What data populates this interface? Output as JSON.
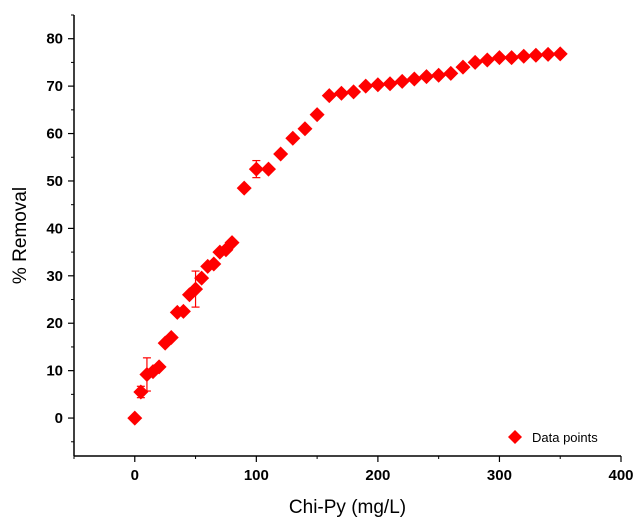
{
  "chart_data": {
    "type": "scatter",
    "title": "",
    "xlabel": "Chi-Py (mg/L)",
    "ylabel": "% Removal",
    "xlim": [
      -50,
      400
    ],
    "ylim": [
      -8,
      85
    ],
    "xticks": [
      0,
      100,
      200,
      300,
      400
    ],
    "xtick_labels": [
      "0",
      "100",
      "200",
      "300",
      "400"
    ],
    "yticks": [
      0,
      10,
      20,
      30,
      40,
      50,
      60,
      70,
      80
    ],
    "ytick_labels": [
      "0",
      "10",
      "20",
      "30",
      "40",
      "50",
      "60",
      "70",
      "80"
    ],
    "grid": false,
    "legend_position": "bottom-right",
    "marker_color": "#ff0000",
    "series": [
      {
        "name": "Data points",
        "marker": "diamond",
        "color": "#ff0000",
        "points": [
          {
            "x": 0,
            "y": 0
          },
          {
            "x": 5,
            "y": 5.5,
            "err": 1.2
          },
          {
            "x": 10,
            "y": 9.2,
            "err": 3.5
          },
          {
            "x": 15,
            "y": 9.8
          },
          {
            "x": 20,
            "y": 10.8
          },
          {
            "x": 25,
            "y": 15.8
          },
          {
            "x": 30,
            "y": 17
          },
          {
            "x": 35,
            "y": 22.3
          },
          {
            "x": 40,
            "y": 22.5
          },
          {
            "x": 45,
            "y": 26
          },
          {
            "x": 50,
            "y": 27.2,
            "err": 3.8
          },
          {
            "x": 55,
            "y": 29.5
          },
          {
            "x": 60,
            "y": 32
          },
          {
            "x": 65,
            "y": 32.5
          },
          {
            "x": 70,
            "y": 35
          },
          {
            "x": 75,
            "y": 35.5
          },
          {
            "x": 80,
            "y": 37
          },
          {
            "x": 90,
            "y": 48.5
          },
          {
            "x": 100,
            "y": 52.5,
            "err": 1.8
          },
          {
            "x": 110,
            "y": 52.5
          },
          {
            "x": 120,
            "y": 55.7
          },
          {
            "x": 130,
            "y": 59
          },
          {
            "x": 140,
            "y": 61
          },
          {
            "x": 150,
            "y": 64
          },
          {
            "x": 160,
            "y": 68
          },
          {
            "x": 170,
            "y": 68.5
          },
          {
            "x": 180,
            "y": 68.8
          },
          {
            "x": 190,
            "y": 70
          },
          {
            "x": 200,
            "y": 70.3
          },
          {
            "x": 210,
            "y": 70.5
          },
          {
            "x": 220,
            "y": 71
          },
          {
            "x": 230,
            "y": 71.5
          },
          {
            "x": 240,
            "y": 72
          },
          {
            "x": 250,
            "y": 72.3
          },
          {
            "x": 260,
            "y": 72.7
          },
          {
            "x": 270,
            "y": 74
          },
          {
            "x": 280,
            "y": 75
          },
          {
            "x": 290,
            "y": 75.5
          },
          {
            "x": 300,
            "y": 76
          },
          {
            "x": 310,
            "y": 76
          },
          {
            "x": 320,
            "y": 76.3
          },
          {
            "x": 330,
            "y": 76.5
          },
          {
            "x": 340,
            "y": 76.7
          },
          {
            "x": 350,
            "y": 76.8
          }
        ]
      }
    ]
  }
}
